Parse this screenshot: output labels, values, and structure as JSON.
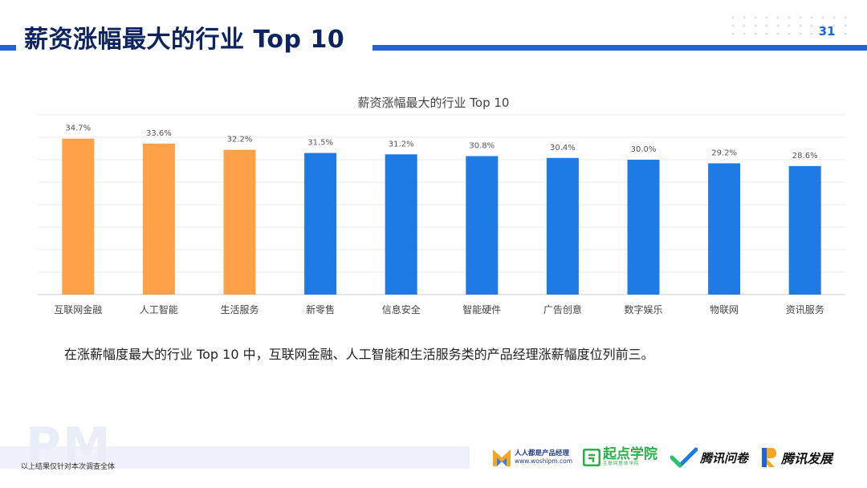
{
  "header": {
    "title": "薪资涨幅最大的行业 Top 10",
    "page_number": "31"
  },
  "chart_data": {
    "type": "bar",
    "title": "薪资涨幅最大的行业 Top 10",
    "categories": [
      "互联网金融",
      "人工智能",
      "生活服务",
      "新零售",
      "信息安全",
      "智能硬件",
      "广告创意",
      "数字娱乐",
      "物联网",
      "资讯服务"
    ],
    "values": [
      34.7,
      33.6,
      32.2,
      31.5,
      31.2,
      30.8,
      30.4,
      30.0,
      29.2,
      28.6
    ],
    "value_labels": [
      "34.7%",
      "33.6%",
      "32.2%",
      "31.5%",
      "31.2%",
      "30.8%",
      "30.4%",
      "30.0%",
      "29.2%",
      "28.6%"
    ],
    "highlight_count": 3,
    "colors": {
      "highlight": "#FFA146",
      "default": "#1E7BE6"
    },
    "ylim": [
      0,
      40
    ],
    "grid": true,
    "xlabel": "",
    "ylabel": ""
  },
  "caption": "在涨薪幅度最大的行业 Top 10 中，互联网金融、人工智能和生活服务类的产品经理涨薪幅度位列前三。",
  "footer": {
    "note": "以上结果仅针对本次调查全体",
    "watermark": "PM",
    "logos": {
      "woshipm_name": "人人都是产品经理",
      "woshipm_url": "www.woshipm.com",
      "qidian_name": "起点学院",
      "qidian_sub": "互联网整体学院",
      "wenjuan_name": "腾讯问卷",
      "fazhan_name": "腾讯发展"
    }
  }
}
